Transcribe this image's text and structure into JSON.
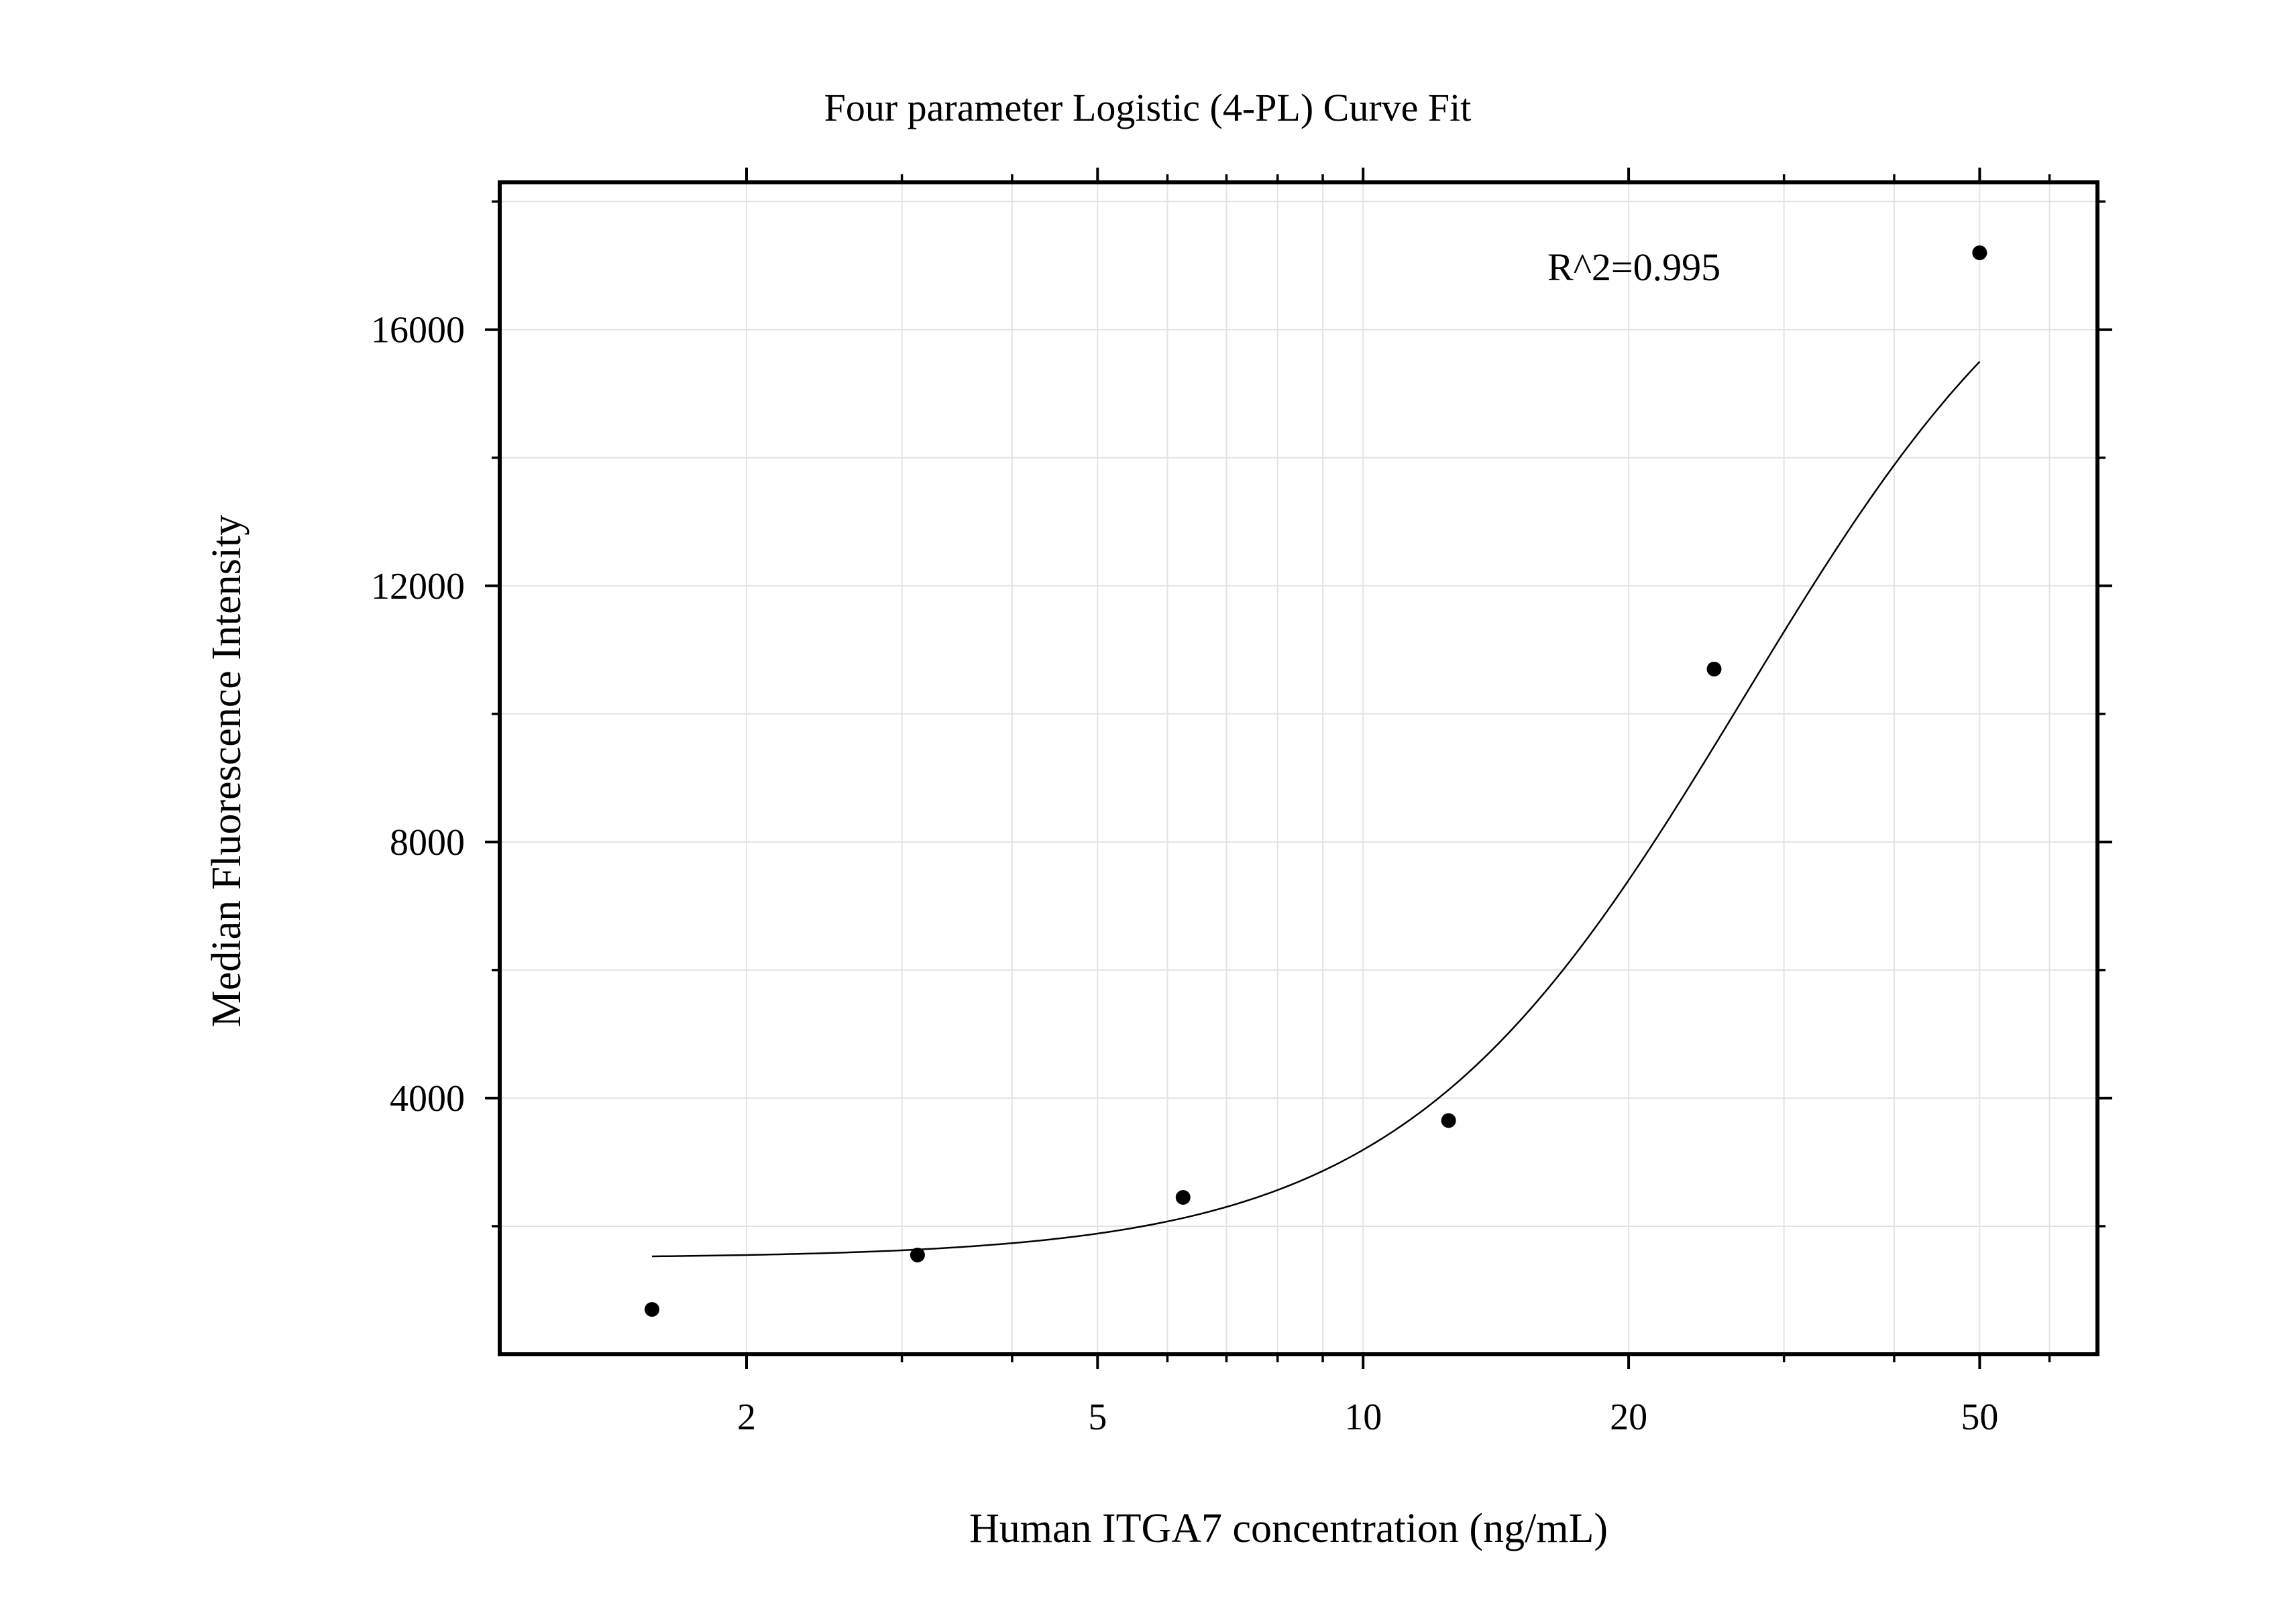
{
  "chart_data": {
    "type": "scatter",
    "title": "Four parameter Logistic (4-PL) Curve Fit",
    "xlabel": "Human ITGA7 concentration (ng/mL)",
    "ylabel": "Median Fluorescence Intensity",
    "xscale": "log",
    "xlim": [
      1.05,
      68
    ],
    "ylim": [
      0,
      18300
    ],
    "x_ticks": [
      2,
      5,
      10,
      20,
      50
    ],
    "x_tick_labels": [
      "2",
      "5",
      "10",
      "20",
      "50"
    ],
    "x_minor_ticks": [
      3,
      4,
      6,
      7,
      8,
      9,
      30,
      40,
      60
    ],
    "y_ticks": [
      4000,
      8000,
      12000,
      16000
    ],
    "y_tick_labels": [
      "4000",
      "8000",
      "12000",
      "16000"
    ],
    "y_minor_ticks": [
      2000,
      6000,
      10000,
      14000,
      18000
    ],
    "grid": true,
    "legend": "none",
    "annotation": "R^2=0.995",
    "series": [
      {
        "kind": "points",
        "x": [
          1.5625,
          3.125,
          6.25,
          12.5,
          25,
          50
        ],
        "y": [
          700,
          1550,
          2450,
          3650,
          10700,
          17200
        ]
      },
      {
        "kind": "fit-curve",
        "model": "4PL",
        "params": {
          "A": 1500,
          "B": 2.25,
          "C": 27,
          "D": 19000
        },
        "x_range": [
          1.5625,
          50
        ]
      }
    ],
    "colors": {
      "points": "#000000",
      "curve": "#000000",
      "grid": "#e3e3e3",
      "frame": "#000000"
    }
  }
}
